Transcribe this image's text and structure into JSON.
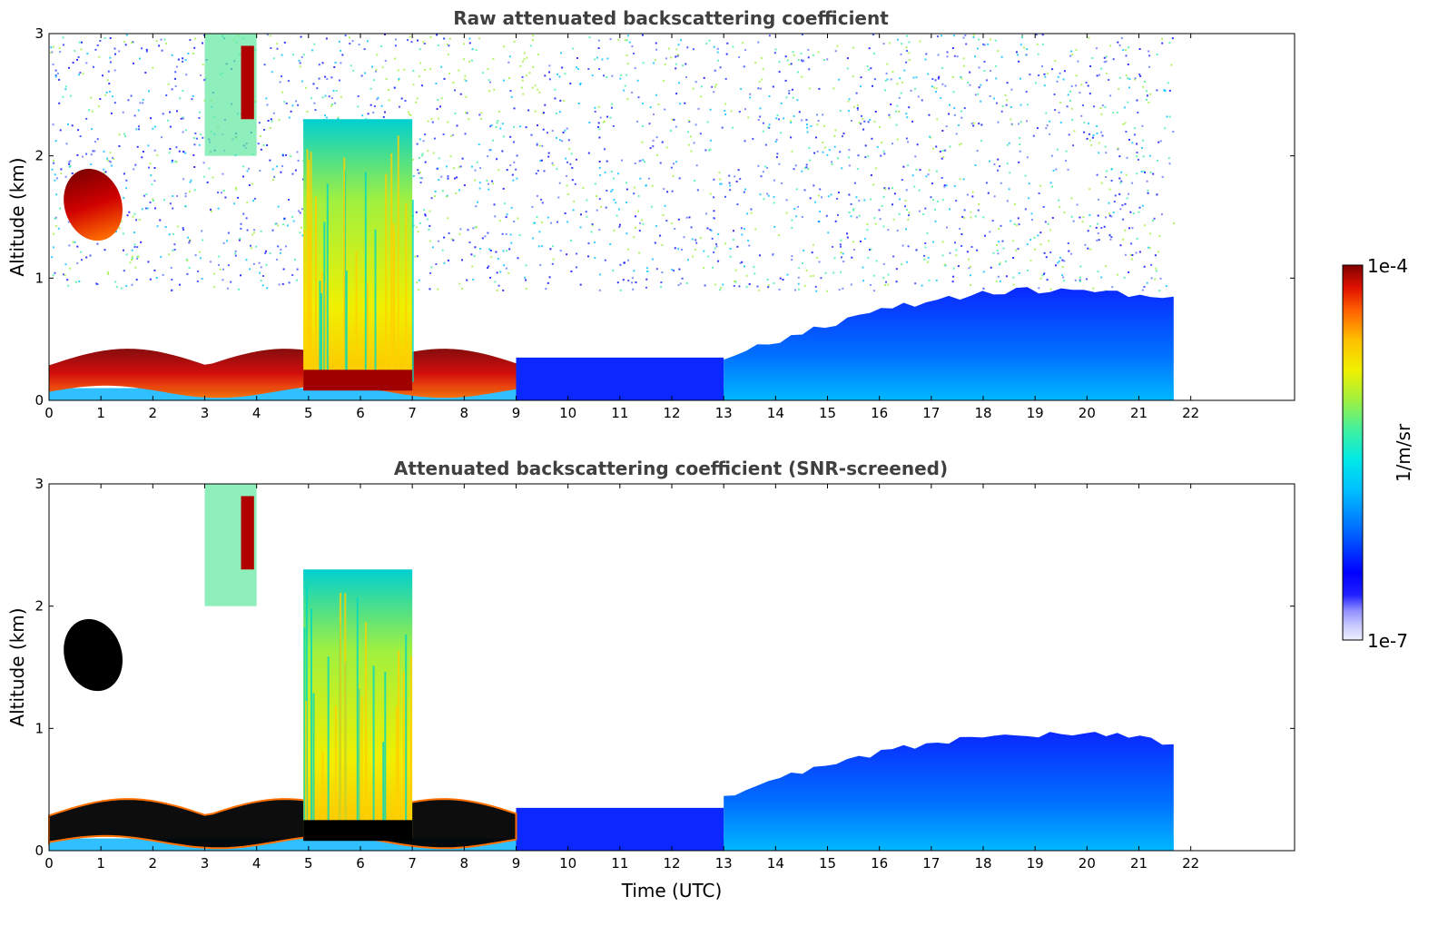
{
  "chart_data": [
    {
      "type": "heatmap",
      "title": "Raw attenuated backscattering coefficient",
      "xlabel": "",
      "ylabel": "Altitude (km)",
      "xlim": [
        0,
        24
      ],
      "ylim": [
        0,
        3
      ],
      "xticks": [
        0,
        1,
        2,
        3,
        4,
        5,
        6,
        7,
        8,
        9,
        10,
        11,
        12,
        13,
        14,
        15,
        16,
        17,
        18,
        19,
        20,
        21,
        22
      ],
      "yticks": [
        0,
        1,
        2,
        3
      ],
      "data_end_hour": 21.67,
      "features": [
        {
          "name": "aerosol layer",
          "x": [
            13.0,
            21.67
          ],
          "top_km": [
            0.35,
            0.9
          ],
          "level": "low"
        },
        {
          "name": "boundary layer cloud",
          "x": [
            0,
            9.0
          ],
          "top_km": [
            0.1,
            0.55
          ],
          "level": "high"
        },
        {
          "name": "deep cloud column",
          "x": [
            4.9,
            7.0
          ],
          "top_km": [
            0.1,
            2.3
          ],
          "level": "mid"
        },
        {
          "name": "elevated cloud",
          "x": [
            0.3,
            1.4
          ],
          "top_km": [
            1.3,
            1.9
          ],
          "level": "high"
        },
        {
          "name": "high cloud",
          "x": [
            3.0,
            4.0
          ],
          "top_km": [
            2.0,
            3.0
          ],
          "level": "high"
        }
      ]
    },
    {
      "type": "heatmap",
      "title": "Attenuated backscattering coefficient (SNR-screened)",
      "xlabel": "Time (UTC)",
      "ylabel": "Altitude (km)",
      "xlim": [
        0,
        24
      ],
      "ylim": [
        0,
        3
      ],
      "xticks": [
        0,
        1,
        2,
        3,
        4,
        5,
        6,
        7,
        8,
        9,
        10,
        11,
        12,
        13,
        14,
        15,
        16,
        17,
        18,
        19,
        20,
        21,
        22
      ],
      "yticks": [
        0,
        1,
        2,
        3
      ],
      "data_end_hour": 21.67,
      "features": [
        {
          "name": "aerosol layer",
          "x": [
            13.0,
            21.67
          ],
          "top_km": [
            0.45,
            0.95
          ],
          "level": "low"
        },
        {
          "name": "boundary layer cloud",
          "x": [
            0,
            9.0
          ],
          "top_km": [
            0.1,
            0.55
          ],
          "level": "saturated"
        },
        {
          "name": "deep cloud column",
          "x": [
            4.9,
            7.0
          ],
          "top_km": [
            0.1,
            2.3
          ],
          "level": "mid"
        },
        {
          "name": "elevated cloud",
          "x": [
            0.3,
            1.4
          ],
          "top_km": [
            1.3,
            1.9
          ],
          "level": "saturated"
        },
        {
          "name": "high cloud",
          "x": [
            3.0,
            4.0
          ],
          "top_km": [
            2.0,
            3.0
          ],
          "level": "high"
        }
      ]
    }
  ],
  "colorbar": {
    "label": "1/m/sr",
    "max_label": "1e-4",
    "min_label": "1e-7",
    "colors": [
      "#eef0ff",
      "#c8c8ff",
      "#8c8cff",
      "#2020ff",
      "#0000ff",
      "#0060ff",
      "#00b0ff",
      "#00e8e8",
      "#40f0a0",
      "#a0f040",
      "#f0f000",
      "#ffc000",
      "#ff7000",
      "#ff2000",
      "#d00000",
      "#800000"
    ]
  }
}
